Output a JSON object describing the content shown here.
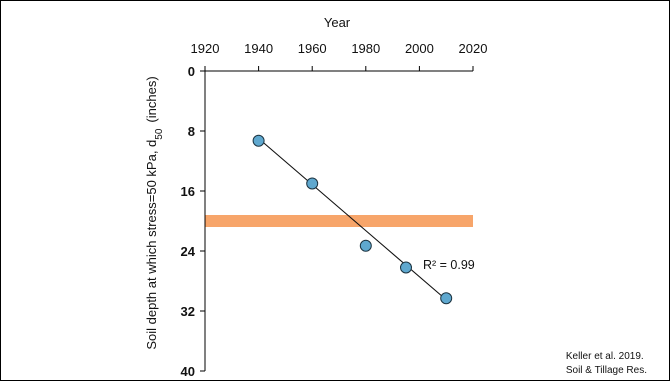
{
  "chart_data": {
    "type": "scatter",
    "xlabel": "Year",
    "ylabel": "Soil depth at which stress=50 kPa, d",
    "ylabel_subscript": "50",
    "ylabel_unit": "(inches)",
    "x_ticks": [
      1920,
      1940,
      1960,
      1980,
      2000,
      2020
    ],
    "y_ticks": [
      0,
      8,
      16,
      24,
      32,
      40
    ],
    "xlim": [
      1920,
      2020
    ],
    "ylim": [
      0,
      40
    ],
    "y_inverted": true,
    "x_axis_position": "top",
    "grid": false,
    "points": [
      {
        "x": 1940,
        "y": 9.3
      },
      {
        "x": 1960,
        "y": 15.0
      },
      {
        "x": 1980,
        "y": 23.3
      },
      {
        "x": 1995,
        "y": 26.2
      },
      {
        "x": 2010,
        "y": 30.3
      }
    ],
    "trendline": {
      "x": [
        1940,
        2010
      ],
      "y": [
        9.0,
        30.5
      ]
    },
    "reference_band": {
      "y": 20.0,
      "color": "#f7a56a"
    },
    "point_color": "#5fa8cf",
    "annotation": "R² = 0.99"
  },
  "source": {
    "line1": "Keller et al. 2019.",
    "line2": "Soil & Tillage Res."
  }
}
